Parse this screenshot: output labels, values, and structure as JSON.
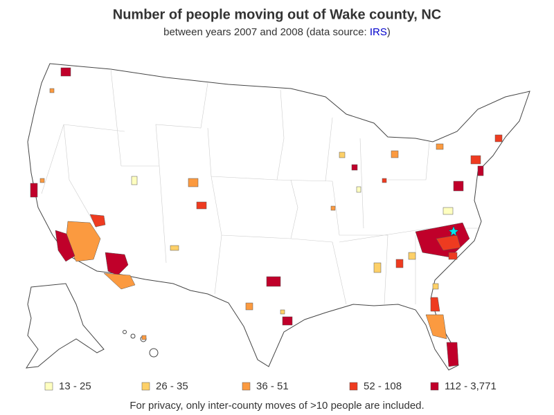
{
  "title": "Number of people moving out of Wake county, NC",
  "subtitle": {
    "text_before": "between years 2007 and 2008 (data source: ",
    "link": "IRS",
    "text_after": ")"
  },
  "legend": [
    {
      "label": "13 - 25",
      "color": "#ffffc0"
    },
    {
      "label": "26 - 35",
      "color": "#fdd068"
    },
    {
      "label": "36 - 51",
      "color": "#fb9a40"
    },
    {
      "label": "52 - 108",
      "color": "#ee3b20"
    },
    {
      "label": "112 - 3,771",
      "color": "#c0002a"
    }
  ],
  "footnote": "For privacy, only inter-county moves of >10 people are included."
}
